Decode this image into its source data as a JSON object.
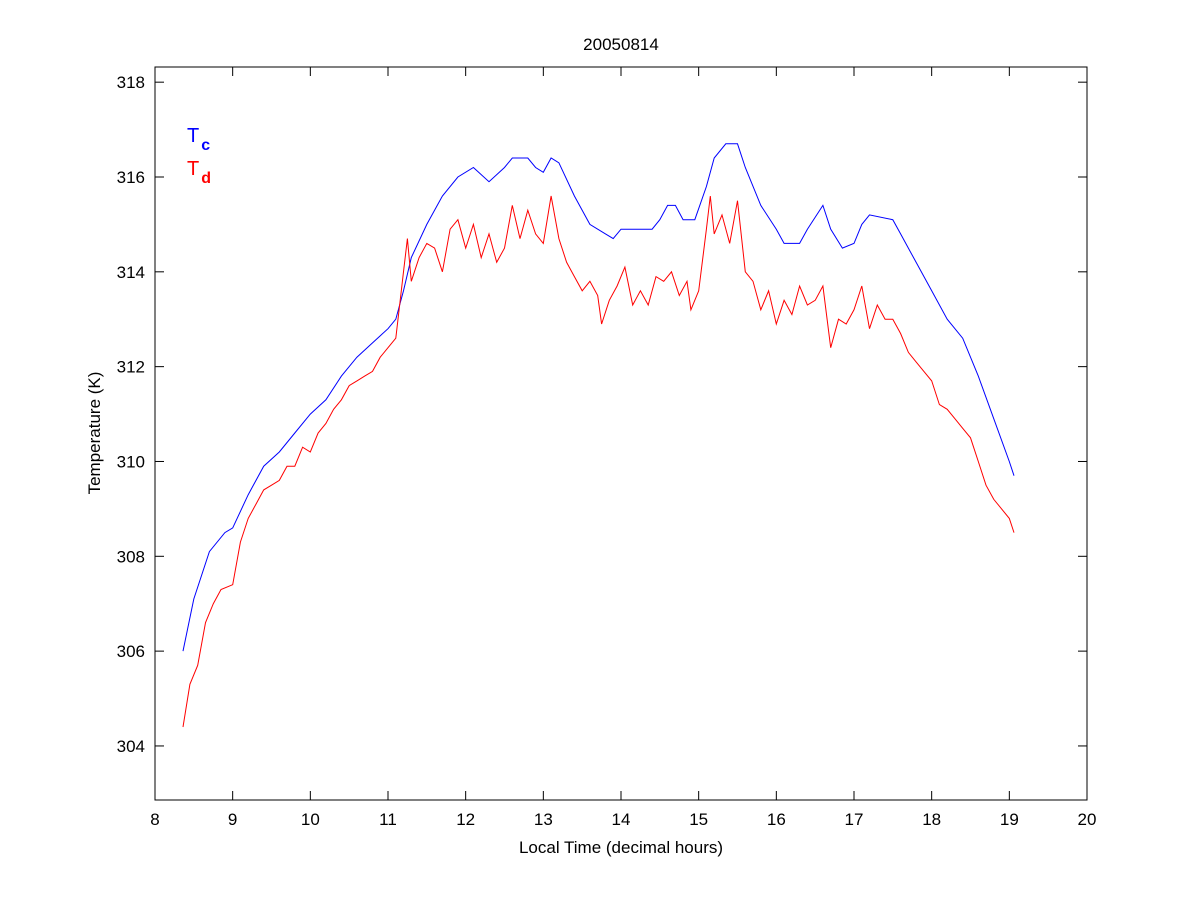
{
  "chart_data": {
    "type": "line",
    "title": "20050814",
    "xlabel": "Local Time (decimal hours)",
    "ylabel": "Temperature (K)",
    "xlim": [
      8,
      20
    ],
    "ylim": [
      302.86,
      318.32
    ],
    "xticks": [
      "8",
      "9",
      "10",
      "11",
      "12",
      "13",
      "14",
      "15",
      "16",
      "17",
      "18",
      "19",
      "20"
    ],
    "yticks": [
      "304",
      "306",
      "308",
      "310",
      "312",
      "314",
      "316",
      "318"
    ],
    "legend_position": "top-left",
    "grid": false,
    "series": [
      {
        "name": "T",
        "subscript": "c",
        "color": "#0000ff",
        "x": [
          8.36,
          8.5,
          8.7,
          8.9,
          9.0,
          9.2,
          9.4,
          9.6,
          9.8,
          10.0,
          10.2,
          10.4,
          10.6,
          10.8,
          11.0,
          11.1,
          11.2,
          11.3,
          11.5,
          11.7,
          11.9,
          12.1,
          12.3,
          12.5,
          12.6,
          12.8,
          12.9,
          13.0,
          13.1,
          13.2,
          13.4,
          13.6,
          13.8,
          13.9,
          14.0,
          14.4,
          14.5,
          14.6,
          14.7,
          14.8,
          14.95,
          15.1,
          15.2,
          15.35,
          15.5,
          15.6,
          15.8,
          16.0,
          16.1,
          16.3,
          16.4,
          16.6,
          16.7,
          16.85,
          17.0,
          17.1,
          17.2,
          17.5,
          17.6,
          17.8,
          18.0,
          18.2,
          18.4,
          18.6,
          18.8,
          19.0,
          19.06
        ],
        "y": [
          306.0,
          307.1,
          308.1,
          308.5,
          308.6,
          309.3,
          309.9,
          310.2,
          310.6,
          311.0,
          311.3,
          311.8,
          312.2,
          312.5,
          312.8,
          313.0,
          313.6,
          314.3,
          315.0,
          315.6,
          316.0,
          316.2,
          315.9,
          316.2,
          316.4,
          316.4,
          316.2,
          316.1,
          316.4,
          316.3,
          315.6,
          315.0,
          314.8,
          314.7,
          314.9,
          314.9,
          315.1,
          315.4,
          315.4,
          315.1,
          315.1,
          315.8,
          316.4,
          316.7,
          316.7,
          316.2,
          315.4,
          314.9,
          314.6,
          314.6,
          314.9,
          315.4,
          314.9,
          314.5,
          314.6,
          315.0,
          315.2,
          315.1,
          314.8,
          314.2,
          313.6,
          313.0,
          312.6,
          311.8,
          310.9,
          310.0,
          309.7
        ]
      },
      {
        "name": "T",
        "subscript": "d",
        "color": "#ff0000",
        "x": [
          8.36,
          8.45,
          8.55,
          8.65,
          8.75,
          8.85,
          9.0,
          9.1,
          9.2,
          9.3,
          9.4,
          9.5,
          9.6,
          9.7,
          9.8,
          9.9,
          10.0,
          10.1,
          10.2,
          10.3,
          10.4,
          10.5,
          10.6,
          10.7,
          10.8,
          10.9,
          11.0,
          11.1,
          11.2,
          11.25,
          11.3,
          11.4,
          11.5,
          11.6,
          11.7,
          11.8,
          11.9,
          12.0,
          12.1,
          12.2,
          12.3,
          12.4,
          12.5,
          12.6,
          12.7,
          12.8,
          12.9,
          13.0,
          13.1,
          13.2,
          13.3,
          13.4,
          13.5,
          13.6,
          13.7,
          13.75,
          13.85,
          13.95,
          14.05,
          14.15,
          14.25,
          14.35,
          14.45,
          14.55,
          14.65,
          14.75,
          14.85,
          14.9,
          15.0,
          15.1,
          15.15,
          15.2,
          15.3,
          15.4,
          15.5,
          15.6,
          15.7,
          15.8,
          15.9,
          16.0,
          16.1,
          16.2,
          16.3,
          16.4,
          16.5,
          16.6,
          16.7,
          16.8,
          16.9,
          17.0,
          17.1,
          17.2,
          17.3,
          17.4,
          17.5,
          17.6,
          17.7,
          17.8,
          17.9,
          18.0,
          18.1,
          18.2,
          18.3,
          18.4,
          18.5,
          18.6,
          18.7,
          18.8,
          18.9,
          19.0,
          19.06
        ],
        "y": [
          304.4,
          305.3,
          305.7,
          306.6,
          307.0,
          307.3,
          307.4,
          308.3,
          308.8,
          309.1,
          309.4,
          309.5,
          309.6,
          309.9,
          309.9,
          310.3,
          310.2,
          310.6,
          310.8,
          311.1,
          311.3,
          311.6,
          311.7,
          311.8,
          311.9,
          312.2,
          312.4,
          312.6,
          314.0,
          314.7,
          313.8,
          314.3,
          314.6,
          314.5,
          314.0,
          314.9,
          315.1,
          314.5,
          315.0,
          314.3,
          314.8,
          314.2,
          314.5,
          315.4,
          314.7,
          315.3,
          314.8,
          314.6,
          315.6,
          314.7,
          314.2,
          313.9,
          313.6,
          313.8,
          313.5,
          312.9,
          313.4,
          313.7,
          314.1,
          313.3,
          313.6,
          313.3,
          313.9,
          313.8,
          314.0,
          313.5,
          313.8,
          313.2,
          313.6,
          314.9,
          315.6,
          314.8,
          315.2,
          314.6,
          315.5,
          314.0,
          313.8,
          313.2,
          313.6,
          312.9,
          313.4,
          313.1,
          313.7,
          313.3,
          313.4,
          313.7,
          312.4,
          313.0,
          312.9,
          313.2,
          313.7,
          312.8,
          313.3,
          313.0,
          313.0,
          312.7,
          312.3,
          312.1,
          311.9,
          311.7,
          311.2,
          311.1,
          310.9,
          310.7,
          310.5,
          310.0,
          309.5,
          309.2,
          309.0,
          308.8,
          308.5
        ]
      }
    ]
  }
}
